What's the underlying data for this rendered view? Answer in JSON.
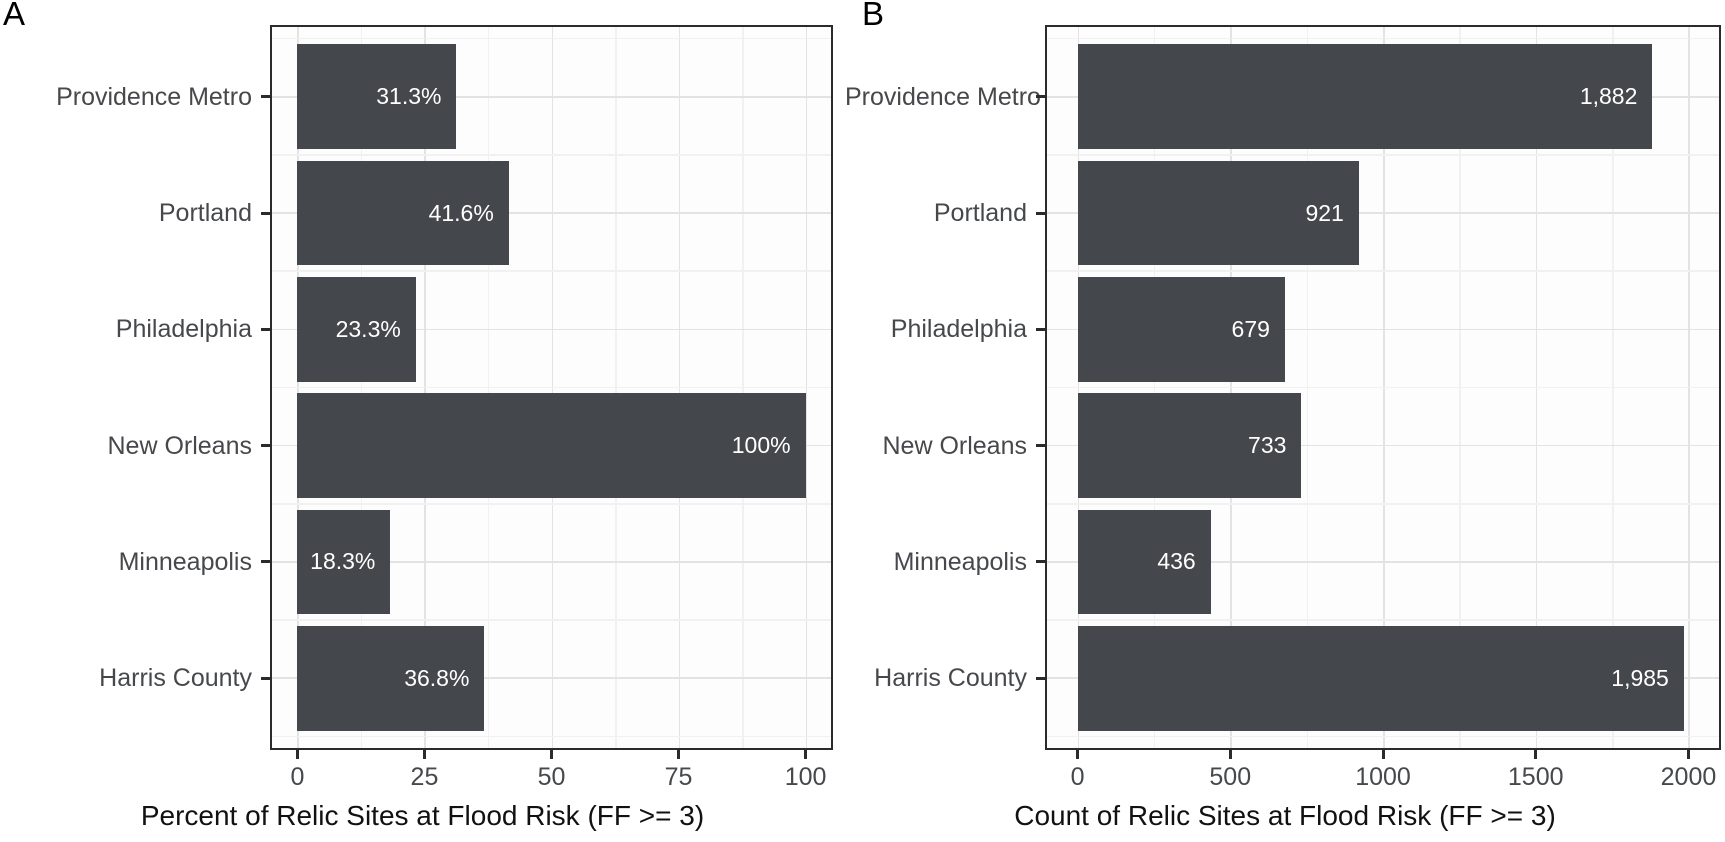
{
  "chart_data": [
    {
      "type": "bar",
      "orientation": "horizontal",
      "panel_tag": "A",
      "title": "",
      "xlabel": "Percent of Relic Sites at Flood Risk (FF >= 3)",
      "ylabel": "",
      "categories": [
        "Providence Metro",
        "Portland",
        "Philadelphia",
        "New Orleans",
        "Minneapolis",
        "Harris County"
      ],
      "values": [
        31.3,
        41.6,
        23.3,
        100,
        18.3,
        36.8
      ],
      "value_labels": [
        "31.3%",
        "41.6%",
        "23.3%",
        "100%",
        "18.3%",
        "36.8%"
      ],
      "xlim": [
        0,
        100
      ],
      "x_ticks": [
        0,
        25,
        50,
        75,
        100
      ],
      "x_tick_labels": [
        "0",
        "25",
        "50",
        "75",
        "100"
      ],
      "grid": "major and minor, light gray on white",
      "legend": false
    },
    {
      "type": "bar",
      "orientation": "horizontal",
      "panel_tag": "B",
      "title": "",
      "xlabel": "Count of Relic Sites at Flood Risk (FF >= 3)",
      "ylabel": "",
      "categories": [
        "Providence Metro",
        "Portland",
        "Philadelphia",
        "New Orleans",
        "Minneapolis",
        "Harris County"
      ],
      "values": [
        1882,
        921,
        679,
        733,
        436,
        1985
      ],
      "value_labels": [
        "1,882",
        "921",
        "679",
        "733",
        "436",
        "1,985"
      ],
      "xlim": [
        0,
        2000
      ],
      "x_ticks": [
        0,
        500,
        1000,
        1500,
        2000
      ],
      "x_tick_labels": [
        "0",
        "500",
        "1000",
        "1500",
        "2000"
      ],
      "grid": "major and minor, light gray on white",
      "legend": false
    }
  ],
  "figure": {
    "colors": {
      "bar_fill": "#44474B",
      "panel_border": "#2B2B2B",
      "grid_major": "#E3E3E3",
      "grid_minor": "#F1F1F1",
      "axis_text": "#46484B",
      "axis_title_text": "#111111",
      "bar_value_text": "#FFFFFF",
      "background": "#FFFFFF"
    }
  }
}
